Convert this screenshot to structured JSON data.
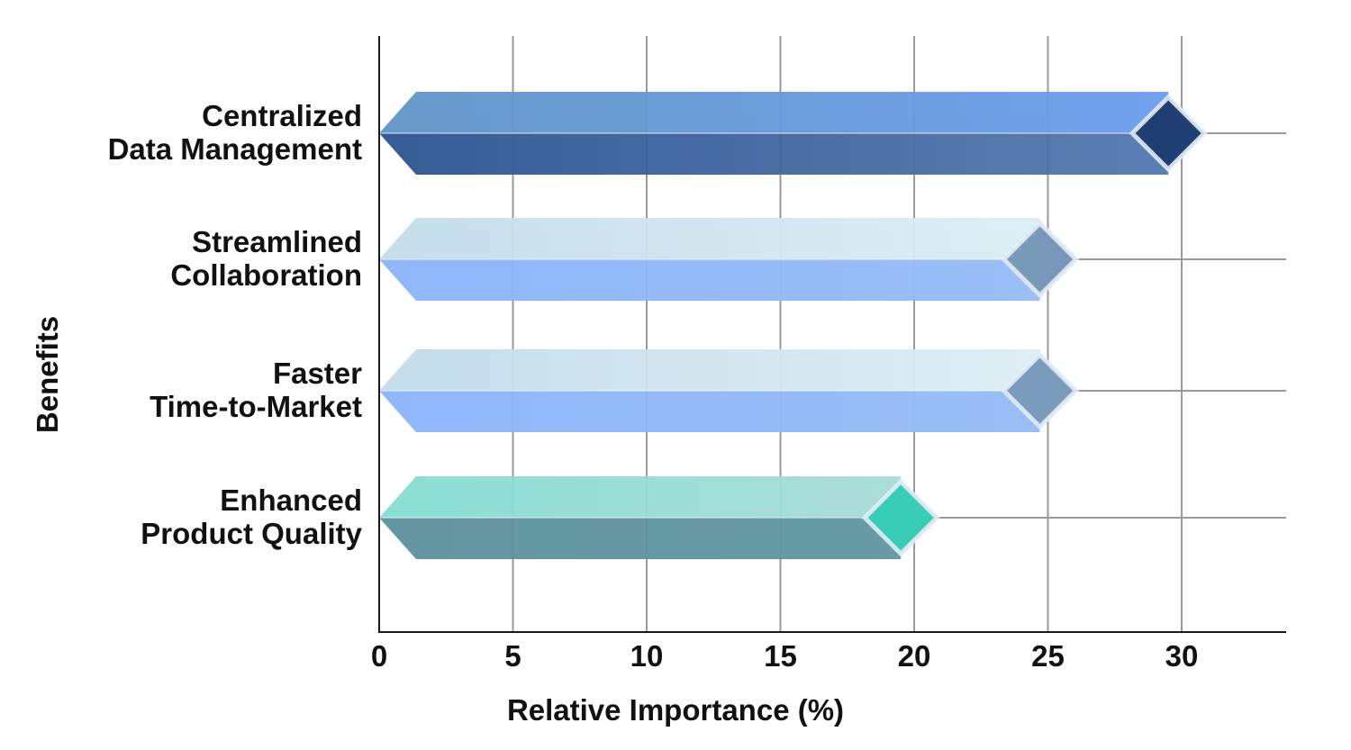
{
  "chart_data": {
    "type": "bar",
    "orientation": "horizontal",
    "categories": [
      "Centralized\nData Management",
      "Streamlined\nCollaboration",
      "Faster\nTime-to-Market",
      "Enhanced\nProduct Quality"
    ],
    "values": [
      29.5,
      24.7,
      24.7,
      19.5
    ],
    "xlabel": "Relative Importance (%)",
    "ylabel": "Benefits",
    "xlim": [
      0,
      33
    ],
    "xticks": [
      0,
      5,
      10,
      15,
      20,
      25,
      30
    ],
    "grid": true,
    "marker": "diamond",
    "bar_styles": [
      {
        "top": [
          "#5f95c6",
          "#6a9cec"
        ],
        "bottom": [
          "#2b5490",
          "#5279b0"
        ],
        "marker": "#1f3f73"
      },
      {
        "top": [
          "#c3dcea",
          "#ddeef5"
        ],
        "bottom": [
          "#8ab4fa",
          "#95bcf6"
        ],
        "marker": "#7899b8"
      },
      {
        "top": [
          "#c3dcea",
          "#ddeef5"
        ],
        "bottom": [
          "#8ab4fa",
          "#95bcf6"
        ],
        "marker": "#7a9bbc"
      },
      {
        "top": [
          "#84ded2",
          "#a9dcd8"
        ],
        "bottom": [
          "#5b919d",
          "#5f96a1"
        ],
        "marker": "#38cdb6"
      }
    ]
  }
}
